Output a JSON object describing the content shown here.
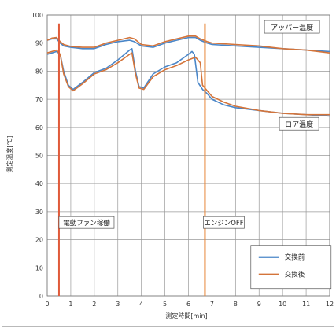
{
  "chart_data": {
    "type": "line",
    "title": "",
    "xlabel": "測定時間[min]",
    "ylabel": "測定温度[℃]",
    "xlim": [
      0,
      12
    ],
    "ylim": [
      0,
      100
    ],
    "x_ticks": [
      "0",
      "1",
      "2",
      "3",
      "4",
      "5",
      "6",
      "7",
      "8",
      "9",
      "10",
      "11",
      "12"
    ],
    "y_ticks": [
      "0",
      "10",
      "20",
      "30",
      "40",
      "50",
      "60",
      "70",
      "80",
      "90",
      "100"
    ],
    "grid": true,
    "legend_position": "bottom-right",
    "series": [
      {
        "name": "交換前",
        "color": "#4a86c8",
        "curves": [
          [
            [
              0,
              91
            ],
            [
              0.2,
              91.5
            ],
            [
              0.4,
              91.5
            ],
            [
              0.55,
              90
            ],
            [
              0.7,
              89
            ],
            [
              1,
              88.5
            ],
            [
              1.5,
              88
            ],
            [
              2,
              88
            ],
            [
              2.5,
              89.5
            ],
            [
              3,
              90.5
            ],
            [
              3.5,
              91
            ],
            [
              3.7,
              90.5
            ],
            [
              4,
              89
            ],
            [
              4.5,
              88.5
            ],
            [
              5,
              90
            ],
            [
              5.5,
              91
            ],
            [
              6,
              92
            ],
            [
              6.3,
              92
            ],
            [
              6.5,
              91
            ],
            [
              6.8,
              90
            ],
            [
              7,
              89.5
            ],
            [
              8,
              89
            ],
            [
              9,
              88.5
            ],
            [
              10,
              88
            ],
            [
              11,
              87.5
            ],
            [
              12,
              87
            ]
          ],
          [
            [
              0,
              86
            ],
            [
              0.2,
              86.5
            ],
            [
              0.4,
              87
            ],
            [
              0.55,
              86
            ],
            [
              0.7,
              80
            ],
            [
              0.9,
              75
            ],
            [
              1.1,
              73.5
            ],
            [
              1.5,
              76
            ],
            [
              2,
              79.5
            ],
            [
              2.5,
              81
            ],
            [
              3,
              84
            ],
            [
              3.5,
              87.5
            ],
            [
              3.6,
              88
            ],
            [
              3.75,
              80
            ],
            [
              3.9,
              74.5
            ],
            [
              4.1,
              74
            ],
            [
              4.5,
              79
            ],
            [
              5,
              81.5
            ],
            [
              5.5,
              83
            ],
            [
              6,
              86
            ],
            [
              6.15,
              87
            ],
            [
              6.25,
              86
            ],
            [
              6.4,
              76
            ],
            [
              6.6,
              73.5
            ],
            [
              6.8,
              72
            ],
            [
              7,
              70
            ],
            [
              7.5,
              68
            ],
            [
              8,
              67
            ],
            [
              9,
              66
            ],
            [
              10,
              65
            ],
            [
              11,
              64.5
            ],
            [
              12,
              64
            ]
          ]
        ]
      },
      {
        "name": "交換後",
        "color": "#d4743a",
        "curves": [
          [
            [
              0,
              91
            ],
            [
              0.2,
              91.8
            ],
            [
              0.4,
              92
            ],
            [
              0.55,
              90.5
            ],
            [
              0.7,
              89.5
            ],
            [
              1,
              88.8
            ],
            [
              1.5,
              88.5
            ],
            [
              2,
              88.5
            ],
            [
              2.5,
              90
            ],
            [
              3,
              91
            ],
            [
              3.5,
              92
            ],
            [
              3.7,
              91.5
            ],
            [
              4,
              89.5
            ],
            [
              4.5,
              89
            ],
            [
              5,
              90.5
            ],
            [
              5.5,
              91.5
            ],
            [
              6,
              92.5
            ],
            [
              6.3,
              92.5
            ],
            [
              6.5,
              91.5
            ],
            [
              6.8,
              90.5
            ],
            [
              7,
              90
            ],
            [
              8,
              89.5
            ],
            [
              9,
              89
            ],
            [
              10,
              88
            ],
            [
              11,
              87.5
            ],
            [
              12,
              86.5
            ]
          ],
          [
            [
              0,
              86.5
            ],
            [
              0.2,
              87
            ],
            [
              0.4,
              87.5
            ],
            [
              0.55,
              86
            ],
            [
              0.7,
              79
            ],
            [
              0.9,
              74.5
            ],
            [
              1.1,
              73
            ],
            [
              1.5,
              75.5
            ],
            [
              2,
              79
            ],
            [
              2.5,
              80.5
            ],
            [
              3,
              83
            ],
            [
              3.5,
              86
            ],
            [
              3.6,
              86.5
            ],
            [
              3.75,
              79
            ],
            [
              3.9,
              74
            ],
            [
              4.1,
              73.5
            ],
            [
              4.5,
              78
            ],
            [
              5,
              80.5
            ],
            [
              5.5,
              82
            ],
            [
              6,
              84
            ],
            [
              6.3,
              85
            ],
            [
              6.5,
              83
            ],
            [
              6.6,
              75
            ],
            [
              6.8,
              73
            ],
            [
              7,
              71
            ],
            [
              7.5,
              69
            ],
            [
              8,
              67.5
            ],
            [
              9,
              66
            ],
            [
              10,
              65
            ],
            [
              11,
              64.5
            ],
            [
              12,
              64.5
            ]
          ]
        ]
      }
    ],
    "markers": [
      {
        "x": 0.5,
        "color": "#e05a3a",
        "label": "電動ファン稼働",
        "label_y": 26
      },
      {
        "x": 6.7,
        "color": "#e8863a",
        "label": "エンジンOFF",
        "label_y": 26
      }
    ],
    "annotations": [
      {
        "text": "アッパー温度",
        "x": 10.4,
        "y": 95.5
      },
      {
        "text": "ロア温度",
        "x": 10.7,
        "y": 61
      }
    ]
  }
}
